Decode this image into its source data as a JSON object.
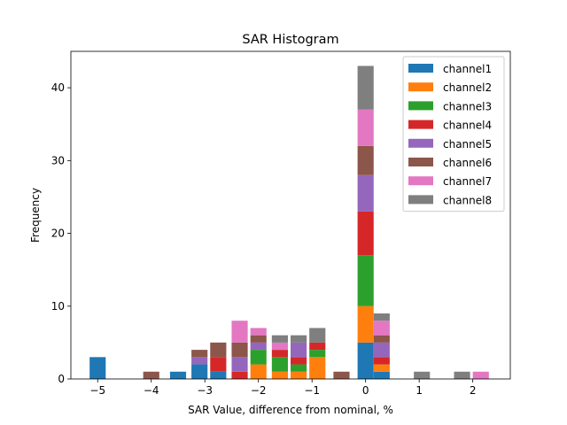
{
  "chart_data": {
    "type": "bar",
    "stacked": true,
    "title": "SAR Histogram",
    "xlabel": "SAR Value, difference from nominal, %",
    "ylabel": "Frequency",
    "xlim": [
      -5.5,
      2.7
    ],
    "ylim": [
      0,
      45
    ],
    "bar_width": 0.3,
    "xticks": [
      {
        "value": -5,
        "label": "−5"
      },
      {
        "value": -4,
        "label": "−4"
      },
      {
        "value": -3,
        "label": "−3"
      },
      {
        "value": -2,
        "label": "−2"
      },
      {
        "value": -1,
        "label": "−1"
      },
      {
        "value": 0,
        "label": "0"
      },
      {
        "value": 1,
        "label": "1"
      },
      {
        "value": 2,
        "label": "2"
      }
    ],
    "yticks": [
      {
        "value": 0,
        "label": "0"
      },
      {
        "value": 10,
        "label": "10"
      },
      {
        "value": 20,
        "label": "20"
      },
      {
        "value": 30,
        "label": "30"
      },
      {
        "value": 40,
        "label": "40"
      }
    ],
    "x": [
      -5.0,
      -4.0,
      -3.5,
      -3.1,
      -2.75,
      -2.35,
      -2.0,
      -1.6,
      -1.25,
      -0.9,
      -0.45,
      0.0,
      0.3,
      1.05,
      1.8,
      2.15
    ],
    "series": [
      {
        "name": "channel1",
        "color": "#1f77b4",
        "values": [
          3,
          0,
          1,
          2,
          1,
          0,
          0,
          0,
          0,
          0,
          0,
          5,
          1,
          0,
          0,
          0
        ]
      },
      {
        "name": "channel2",
        "color": "#ff7f0e",
        "values": [
          0,
          0,
          0,
          0,
          0,
          0,
          2,
          1,
          1,
          3,
          0,
          5,
          1,
          0,
          0,
          0
        ]
      },
      {
        "name": "channel3",
        "color": "#2ca02c",
        "values": [
          0,
          0,
          0,
          0,
          0,
          0,
          2,
          2,
          1,
          1,
          0,
          7,
          0,
          0,
          0,
          0
        ]
      },
      {
        "name": "channel4",
        "color": "#d62728",
        "values": [
          0,
          0,
          0,
          0,
          2,
          1,
          0,
          1,
          1,
          1,
          0,
          6,
          1,
          0,
          0,
          0
        ]
      },
      {
        "name": "channel5",
        "color": "#9467bd",
        "values": [
          0,
          0,
          0,
          1,
          0,
          2,
          1,
          0,
          2,
          0,
          0,
          5,
          2,
          0,
          0,
          0
        ]
      },
      {
        "name": "channel6",
        "color": "#8c564b",
        "values": [
          0,
          1,
          0,
          1,
          2,
          2,
          1,
          0,
          0,
          0,
          1,
          4,
          1,
          0,
          0,
          0
        ]
      },
      {
        "name": "channel7",
        "color": "#e377c2",
        "values": [
          0,
          0,
          0,
          0,
          0,
          3,
          1,
          1,
          0,
          0,
          0,
          5,
          2,
          0,
          0,
          1
        ]
      },
      {
        "name": "channel8",
        "color": "#7f7f7f",
        "values": [
          0,
          0,
          0,
          0,
          0,
          0,
          0,
          1,
          1,
          2,
          0,
          6,
          1,
          1,
          1,
          0
        ]
      }
    ],
    "legend_position": "top-right"
  }
}
